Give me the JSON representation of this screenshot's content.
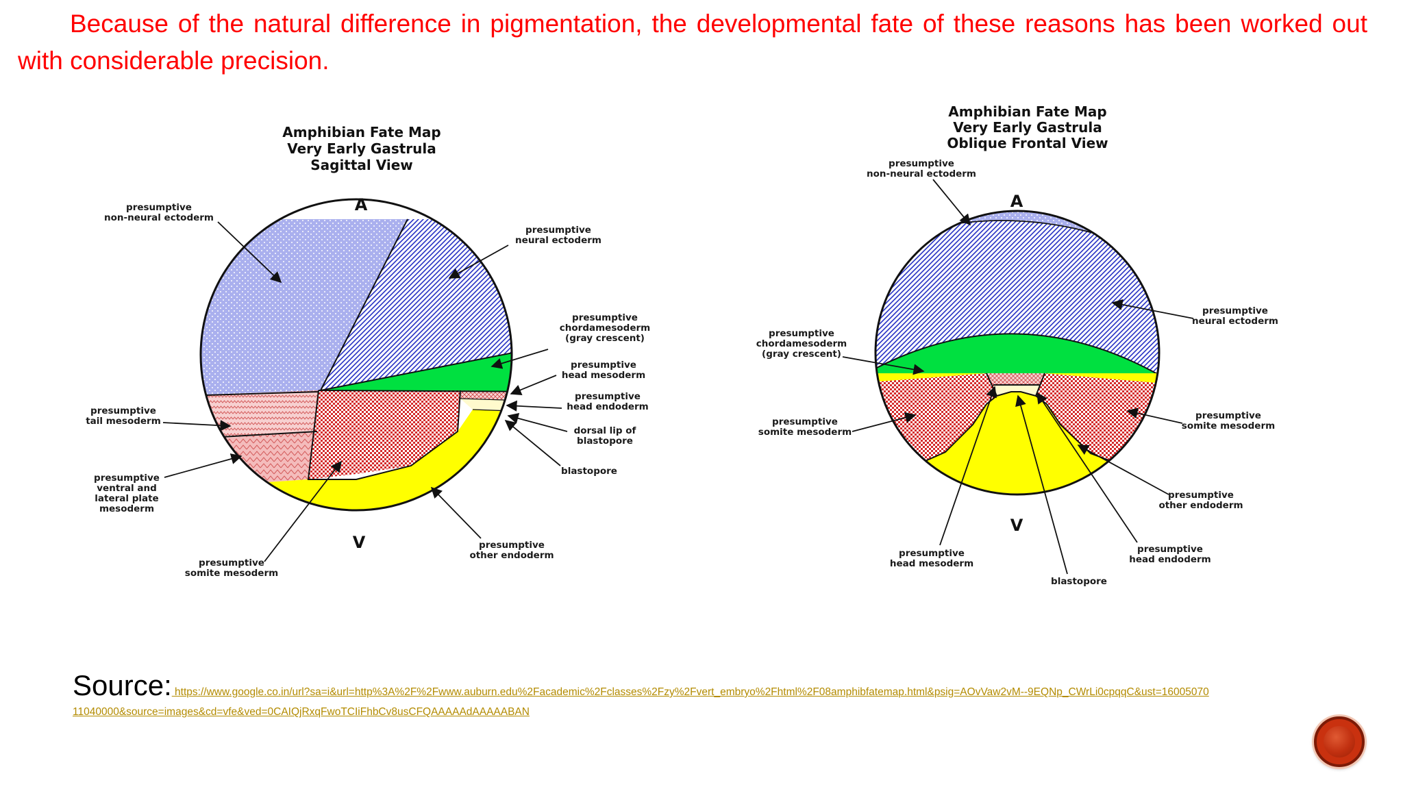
{
  "slide": {
    "body_text": "Because of the natural difference in pigmentation, the developmental fate of these reasons has been worked out with considerable   precision."
  },
  "left_map": {
    "title_lines": [
      "Amphibian Fate Map",
      "Very Early Gastrula",
      "Sagittal View"
    ],
    "pole_top": "A",
    "pole_bottom": "V",
    "labels": {
      "non_neural_ectoderm": [
        "presumptive",
        "non-neural ectoderm"
      ],
      "neural_ectoderm": [
        "presumptive",
        "neural ectoderm"
      ],
      "chordamesoderm": [
        "presumptive",
        "chordamesoderm",
        "(gray crescent)"
      ],
      "head_mesoderm": [
        "presumptive",
        "head mesoderm"
      ],
      "head_endoderm": [
        "presumptive",
        "head endoderm"
      ],
      "dorsal_lip": [
        "dorsal lip of",
        "blastopore"
      ],
      "blastopore": [
        "blastopore"
      ],
      "tail_mesoderm": [
        "presumptive",
        "tail mesoderm"
      ],
      "ventral_lateral_plate": [
        "presumptive",
        "ventral and",
        "lateral plate",
        "mesoderm"
      ],
      "somite_mesoderm": [
        "presumptive",
        "somite mesoderm"
      ],
      "other_endoderm": [
        "presumptive",
        "other endoderm"
      ]
    }
  },
  "right_map": {
    "title_lines": [
      "Amphibian Fate Map",
      "Very Early Gastrula",
      "Oblique Frontal View"
    ],
    "pole_top": "A",
    "pole_bottom": "V",
    "labels": {
      "non_neural_ectoderm": [
        "presumptive",
        "non-neural ectoderm"
      ],
      "neural_ectoderm": [
        "presumptive",
        "neural ectoderm"
      ],
      "chordamesoderm": [
        "presumptive",
        "chordamesoderm",
        "(gray crescent)"
      ],
      "somite_left": [
        "presumptive",
        "somite mesoderm"
      ],
      "somite_right": [
        "presumptive",
        "somite mesoderm"
      ],
      "other_endoderm": [
        "presumptive",
        "other endoderm"
      ],
      "head_mesoderm": [
        "presumptive",
        "head mesoderm"
      ],
      "head_endoderm": [
        "presumptive",
        "head endoderm"
      ],
      "blastopore": [
        "blastopore"
      ]
    }
  },
  "source": {
    "label": "Source:",
    "url": " https://www.google.co.in/url?sa=i&url=http%3A%2F%2Fwww.auburn.edu%2Facademic%2Fclasses%2Fzy%2Fvert_embryo%2Fhtml%2F08amphibfatemap.html&psig=AOvVaw2vM--9EQNp_CWrLi0cpqqC&ust=1600507011040000&source=images&cd=vfe&ved=0CAIQjRxqFwoTCIiFhbCv8usCFQAAAAAdAAAAABAN"
  },
  "colors": {
    "text_red": "#ff0000",
    "ectoderm_blue": "#aab0ee",
    "neural_blue": "#2630c4",
    "chorda_green": "#00e040",
    "somite_red": "#d42a2a",
    "tail_pink": "#f2b3b3",
    "endoderm_yellow": "#ffff00",
    "link_gold": "#b38b00",
    "nav_button": "#c9310f"
  }
}
